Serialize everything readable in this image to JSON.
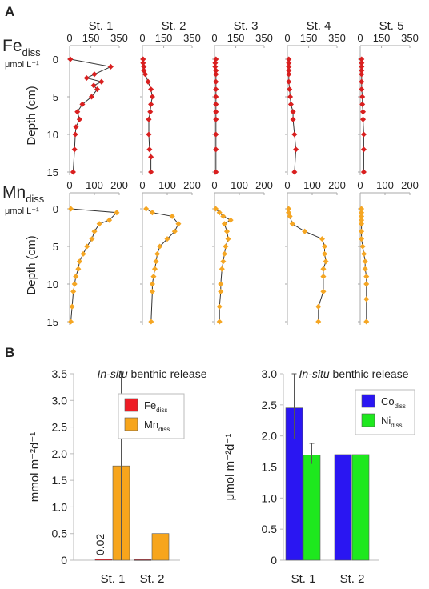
{
  "panel_a_letter": "A",
  "panel_b_letter": "B",
  "chart_data": [
    {
      "type": "line",
      "panel": "A",
      "stations": [
        "St. 1",
        "St. 2",
        "St. 3",
        "St. 4",
        "St. 5"
      ],
      "ylabel": "Depth (cm)",
      "ylim": [
        0,
        15
      ],
      "yticks": [
        "0",
        "5",
        "10",
        "15"
      ],
      "rows": [
        {
          "label": "Fe",
          "label_sub": "diss",
          "unit": "μmol L⁻¹",
          "xlim": [
            0,
            350
          ],
          "xticks": [
            "0",
            "150",
            "350"
          ],
          "color": "#d91f1f",
          "series": [
            {
              "name": "St. 1",
              "x": [
                5,
                290,
                175,
                120,
                225,
                170,
                195,
                155,
                90,
                55,
                70,
                45,
                40,
                35,
                25
              ],
              "y": [
                0,
                1,
                2,
                2.5,
                3,
                3.5,
                4,
                5,
                6,
                7,
                8,
                9,
                10,
                12,
                15
              ]
            },
            {
              "name": "St. 2",
              "x": [
                5,
                5,
                10,
                10,
                20,
                40,
                60,
                70,
                60,
                55,
                45,
                45,
                50,
                60,
                60
              ],
              "y": [
                0,
                0.5,
                1,
                1.5,
                2,
                3,
                4,
                5,
                6,
                7,
                8,
                10,
                12,
                13,
                15
              ]
            },
            {
              "name": "St. 3",
              "x": [
                10,
                5,
                5,
                10,
                10,
                10,
                10,
                10,
                10,
                10,
                10,
                10,
                10,
                10
              ],
              "y": [
                0,
                0.5,
                1,
                1.5,
                2,
                3,
                4,
                5,
                6,
                7,
                8,
                10,
                12,
                15
              ]
            },
            {
              "name": "St. 4",
              "x": [
                10,
                10,
                10,
                10,
                10,
                10,
                15,
                20,
                25,
                40,
                40,
                50,
                60,
                50
              ],
              "y": [
                0,
                0.5,
                1,
                1.5,
                2,
                3,
                4,
                5,
                6,
                7,
                8,
                10,
                12,
                15
              ]
            },
            {
              "name": "St. 5",
              "x": [
                10,
                10,
                10,
                10,
                10,
                10,
                10,
                15,
                15,
                20,
                20,
                25,
                25,
                25
              ],
              "y": [
                0,
                0.5,
                1,
                1.5,
                2,
                3,
                4,
                5,
                6,
                7,
                8,
                10,
                12,
                15
              ]
            }
          ]
        },
        {
          "label": "Mn",
          "label_sub": "diss",
          "unit": "μmol L⁻¹",
          "xlim": [
            0,
            200
          ],
          "xticks": [
            "0",
            "100",
            "200"
          ],
          "color": "#f5a623",
          "series": [
            {
              "name": "St. 1",
              "x": [
                5,
                190,
                160,
                120,
                100,
                90,
                70,
                55,
                40,
                35,
                25,
                20,
                15,
                10,
                5
              ],
              "y": [
                0,
                0.5,
                1.5,
                2,
                3,
                4,
                5,
                6,
                7,
                8,
                9,
                10,
                11,
                13,
                15
              ]
            },
            {
              "name": "St. 2",
              "x": [
                15,
                40,
                120,
                145,
                130,
                100,
                70,
                60,
                55,
                50,
                45,
                40,
                40,
                35
              ],
              "y": [
                0,
                0.5,
                1,
                2,
                3,
                4,
                5,
                6,
                7,
                8,
                9,
                10,
                11,
                15
              ]
            },
            {
              "name": "St. 3",
              "x": [
                5,
                20,
                35,
                65,
                40,
                50,
                55,
                45,
                40,
                35,
                30,
                25,
                25,
                20,
                20
              ],
              "y": [
                0,
                0.5,
                1,
                1.5,
                2,
                3,
                4,
                5,
                6,
                7,
                8,
                10,
                11,
                13,
                15
              ]
            },
            {
              "name": "St. 4",
              "x": [
                5,
                5,
                10,
                20,
                70,
                140,
                150,
                150,
                155,
                145,
                145,
                145,
                125,
                125
              ],
              "y": [
                0,
                0.5,
                1,
                2,
                3,
                4,
                5,
                6,
                7,
                8,
                9,
                11,
                13,
                15
              ]
            },
            {
              "name": "St. 5",
              "x": [
                5,
                5,
                5,
                5,
                5,
                5,
                5,
                10,
                15,
                20,
                20,
                25,
                25,
                25,
                25
              ],
              "y": [
                0,
                0.5,
                1,
                1.5,
                2,
                3,
                4,
                5,
                6,
                7,
                8,
                9,
                10,
                12,
                15
              ]
            }
          ]
        }
      ]
    },
    {
      "type": "bar",
      "panel": "B",
      "title_italic": "In-situ",
      "title_rest": " benthic release",
      "categories": [
        "St. 1",
        "St. 2"
      ],
      "ylabel": "mmol m⁻²d⁻¹",
      "ylim": [
        0,
        3.5
      ],
      "yticks": [
        "0",
        "0.5",
        "1.0",
        "1.5",
        "2.0",
        "2.5",
        "3.0",
        "3.5"
      ],
      "legend_position": "top-right",
      "series": [
        {
          "name": "Fe",
          "name_sub": "diss",
          "color": "#ee1c25",
          "values": [
            0.02,
            0.01
          ]
        },
        {
          "name": "Mn",
          "name_sub": "diss",
          "color": "#f7a51c",
          "values": [
            1.77,
            0.5
          ]
        }
      ],
      "error_bars": [
        {
          "series": 1,
          "category": 0,
          "high": 3.55,
          "low": 0
        }
      ],
      "annotations": [
        "0.02"
      ]
    },
    {
      "type": "bar",
      "panel": "B",
      "title_italic": "In-situ",
      "title_rest": " benthic release",
      "categories": [
        "St. 1",
        "St. 2"
      ],
      "ylabel": "μmol m⁻²d⁻¹",
      "ylim": [
        0,
        3.0
      ],
      "yticks": [
        "0",
        "0.5",
        "1.0",
        "1.5",
        "2.0",
        "2.5",
        "3.0"
      ],
      "legend_position": "top-right",
      "series": [
        {
          "name": "Co",
          "name_sub": "diss",
          "color": "#2a16f2",
          "values": [
            2.45,
            1.7
          ]
        },
        {
          "name": "Ni",
          "name_sub": "diss",
          "color": "#1ee81e",
          "values": [
            1.69,
            1.7
          ]
        }
      ],
      "error_bars": [
        {
          "series": 0,
          "category": 0,
          "high": 3.0,
          "low": 1.95
        },
        {
          "series": 1,
          "category": 0,
          "high": 1.88,
          "low": 1.55
        }
      ]
    }
  ]
}
